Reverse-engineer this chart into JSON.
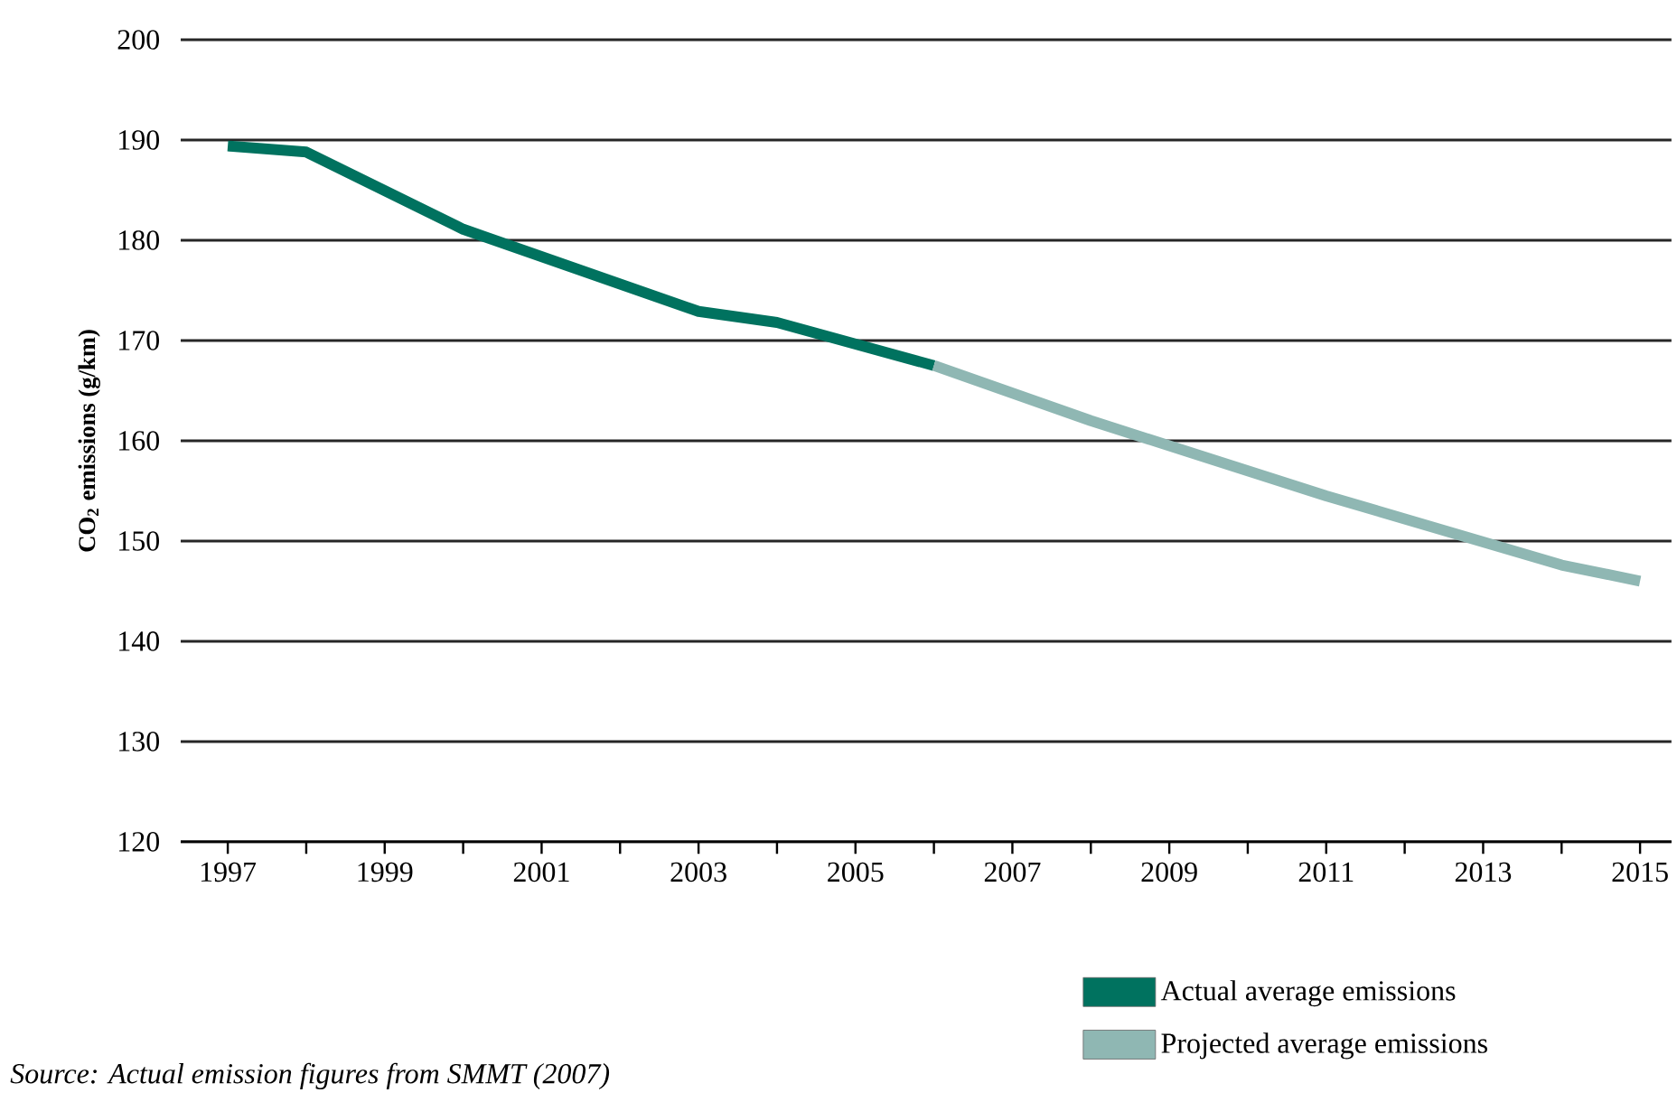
{
  "chart_data": {
    "type": "line",
    "ylabel": "CO$_{2}$ emissions (g/km)",
    "xlim": [
      1996.4,
      2015.4
    ],
    "ylim": [
      120,
      200
    ],
    "xticks": [
      1997,
      {
        "value": 1998,
        "label": null
      },
      1999,
      {
        "value": 2000,
        "label": null
      },
      2001,
      {
        "value": 2002,
        "label": null
      },
      2003,
      {
        "value": 2004,
        "label": null
      },
      2005,
      {
        "value": 2006,
        "label": null
      },
      2007,
      {
        "value": 2008,
        "label": null
      },
      2009,
      {
        "value": 2010,
        "label": null
      },
      2011,
      {
        "value": 2012,
        "label": null
      },
      2013,
      {
        "value": 2014,
        "label": null
      },
      2015
    ],
    "yticks": [
      120,
      130,
      140,
      150,
      160,
      170,
      180,
      190,
      200
    ],
    "grid": "y",
    "legend": "bottom right",
    "line_style": "solid",
    "marker": "none",
    "series": [
      {
        "name": "Actual average emissions",
        "color": "#00725f",
        "x": [
          1997,
          1998,
          2000,
          2003,
          2004,
          2006
        ],
        "values": [
          189.4,
          188.8,
          181.1,
          172.9,
          171.8,
          167.5
        ]
      },
      {
        "name": "Projected average emissions",
        "color": "#8fb7b3",
        "x": [
          2006,
          2008,
          2011,
          2014,
          2015
        ],
        "values": [
          167.5,
          162.0,
          154.5,
          147.6,
          146.0
        ]
      }
    ],
    "annotations": [
      "Source: Actual emission figures from SMMT (2007)"
    ]
  }
}
